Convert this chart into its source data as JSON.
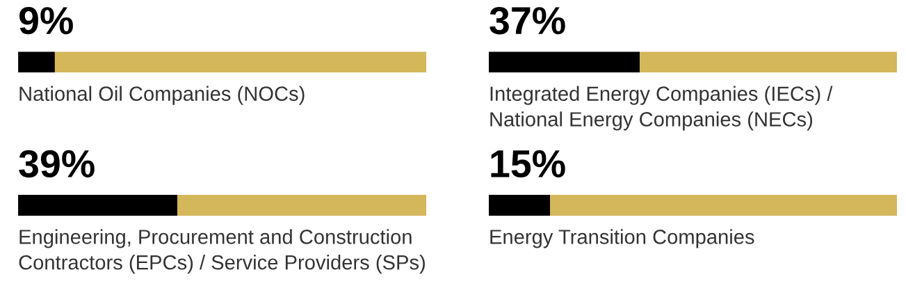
{
  "chart_data": [
    {
      "type": "bar",
      "orientation": "horizontal",
      "stacked": true,
      "categories": [
        "National Oil Companies (NOCs)"
      ],
      "series": [
        {
          "color": "#000000",
          "values": [
            9
          ],
          "value_labels": [
            "9%"
          ]
        },
        {
          "color": "#d4b65b",
          "values": [
            91
          ]
        }
      ]
    },
    {
      "type": "bar",
      "orientation": "horizontal",
      "stacked": true,
      "categories": [
        "Integrated Energy Companies (IECs) / National Energy Companies (NECs)"
      ],
      "series": [
        {
          "color": "#000000",
          "values": [
            37
          ],
          "value_labels": [
            "37%"
          ]
        },
        {
          "color": "#d4b65b",
          "values": [
            63
          ]
        }
      ]
    },
    {
      "type": "bar",
      "orientation": "horizontal",
      "stacked": true,
      "categories": [
        "Engineering, Procurement and Construction Contractors (EPCs) / Service Providers (SPs)"
      ],
      "series": [
        {
          "color": "#000000",
          "values": [
            39
          ],
          "value_labels": [
            "39%"
          ]
        },
        {
          "color": "#d4b65b",
          "values": [
            61
          ]
        }
      ]
    },
    {
      "type": "bar",
      "orientation": "horizontal",
      "stacked": true,
      "categories": [
        "Energy Transition Companies"
      ],
      "series": [
        {
          "color": "#000000",
          "values": [
            15
          ],
          "value_labels": [
            "15%"
          ]
        },
        {
          "color": "#d4b65b",
          "values": [
            85
          ]
        }
      ]
    }
  ]
}
